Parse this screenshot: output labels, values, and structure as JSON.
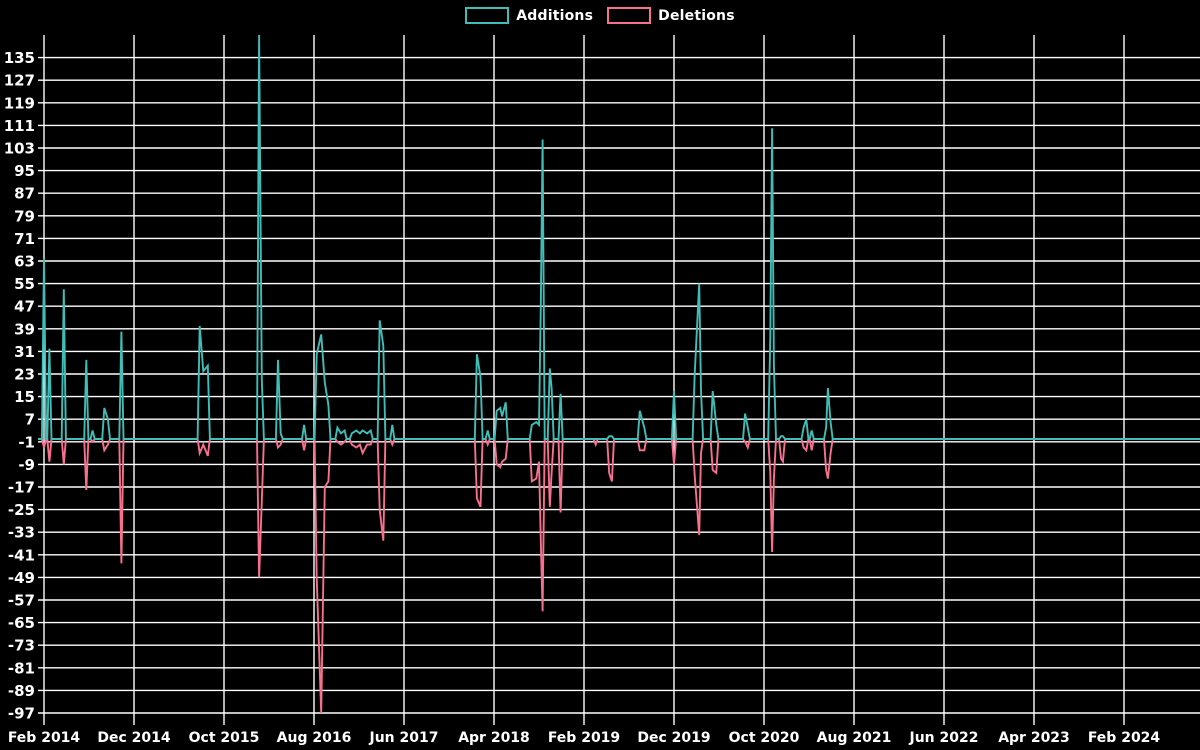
{
  "chart": {
    "background_color": "#000000",
    "grid_color": "#ffffff",
    "text_color": "#ffffff",
    "legend": [
      {
        "label": "Additions",
        "color": "#3fbdb6"
      },
      {
        "label": "Deletions",
        "color": "#f7708e"
      }
    ]
  },
  "chart_data": {
    "type": "line",
    "title": "",
    "xlabel": "",
    "ylabel": "",
    "grid": true,
    "legend_position": "top-center",
    "baseline": 0,
    "y_axis": {
      "ticks": [
        135,
        127,
        119,
        111,
        103,
        95,
        87,
        79,
        71,
        63,
        55,
        47,
        39,
        31,
        23,
        15,
        7,
        -1,
        -9,
        -17,
        -25,
        -33,
        -41,
        -49,
        -57,
        -65,
        -73,
        -81,
        -89,
        -97
      ],
      "range": [
        -101,
        143
      ]
    },
    "x_axis": {
      "tick_labels": [
        "Feb 2014",
        "Dec 2014",
        "Oct 2015",
        "Aug 2016",
        "Jun 2017",
        "Apr 2018",
        "Feb 2019",
        "Dec 2019",
        "Oct 2020",
        "Aug 2021",
        "Jun 2022",
        "Apr 2023",
        "Feb 2024"
      ],
      "tick_positions_months": [
        0,
        10,
        20,
        30,
        40,
        50,
        60,
        70,
        80,
        90,
        100,
        110,
        120
      ],
      "range_months": [
        -0.67,
        128.5
      ],
      "unit": "months since Feb 2014"
    },
    "series_names": [
      "Additions",
      "Deletions"
    ],
    "events_format": [
      "months_since_feb_2014",
      "additions",
      "deletions"
    ],
    "events": [
      [
        0.0,
        64,
        -3
      ],
      [
        0.6,
        32,
        -8
      ],
      [
        2.2,
        53,
        -9
      ],
      [
        4.7,
        28,
        -18
      ],
      [
        5.4,
        3,
        -1
      ],
      [
        6.7,
        11,
        -4
      ],
      [
        7.1,
        7,
        -2
      ],
      [
        8.6,
        38,
        -44
      ],
      [
        17.3,
        40,
        -5
      ],
      [
        17.7,
        24,
        -2
      ],
      [
        18.2,
        26,
        -6
      ],
      [
        23.9,
        143,
        -49
      ],
      [
        24.2,
        21,
        -22
      ],
      [
        26.0,
        28,
        -3
      ],
      [
        26.3,
        2,
        -2
      ],
      [
        28.9,
        5,
        -4
      ],
      [
        30.3,
        30,
        -49
      ],
      [
        30.8,
        37,
        -97
      ],
      [
        31.2,
        20,
        -17
      ],
      [
        31.6,
        12,
        -15
      ],
      [
        32.6,
        4,
        -1
      ],
      [
        33.0,
        2,
        -2
      ],
      [
        33.4,
        3,
        -1
      ],
      [
        34.2,
        2,
        -2
      ],
      [
        34.7,
        3,
        -3
      ],
      [
        35.1,
        2,
        -2
      ],
      [
        35.4,
        3,
        -5
      ],
      [
        35.9,
        2,
        -2
      ],
      [
        36.3,
        3,
        -2
      ],
      [
        37.3,
        42,
        -25
      ],
      [
        37.7,
        33,
        -36
      ],
      [
        38.7,
        5,
        -2
      ],
      [
        48.1,
        30,
        -21
      ],
      [
        48.5,
        22,
        -24
      ],
      [
        49.3,
        3,
        -2
      ],
      [
        50.3,
        10,
        -9
      ],
      [
        50.7,
        11,
        -10
      ],
      [
        50.9,
        8,
        -8
      ],
      [
        51.3,
        13,
        -7
      ],
      [
        54.2,
        5,
        -15
      ],
      [
        54.7,
        6,
        -14
      ],
      [
        55.0,
        5,
        -8
      ],
      [
        55.2,
        47,
        -36
      ],
      [
        55.4,
        106,
        -61
      ],
      [
        56.2,
        25,
        -24
      ],
      [
        56.4,
        18,
        -12
      ],
      [
        57.4,
        16,
        -26
      ],
      [
        61.3,
        0,
        -2
      ],
      [
        62.8,
        1,
        -12
      ],
      [
        63.1,
        1,
        -15
      ],
      [
        66.2,
        10,
        -4
      ],
      [
        66.7,
        4,
        -4
      ],
      [
        70.0,
        17,
        -9
      ],
      [
        72.3,
        23,
        -13
      ],
      [
        72.8,
        55,
        -34
      ],
      [
        73.0,
        17,
        -5
      ],
      [
        74.3,
        17,
        -11
      ],
      [
        74.7,
        5,
        -12
      ],
      [
        77.9,
        9,
        -1
      ],
      [
        78.2,
        4,
        -3
      ],
      [
        80.7,
        36,
        -12
      ],
      [
        80.9,
        110,
        -40
      ],
      [
        81.1,
        26,
        -14
      ],
      [
        81.9,
        1,
        -7
      ],
      [
        82.1,
        1,
        -8
      ],
      [
        84.4,
        4,
        -3
      ],
      [
        84.7,
        7,
        -4
      ],
      [
        85.3,
        3,
        -4
      ],
      [
        86.9,
        4,
        -11
      ],
      [
        87.1,
        18,
        -14
      ],
      [
        87.4,
        6,
        -5
      ]
    ]
  }
}
